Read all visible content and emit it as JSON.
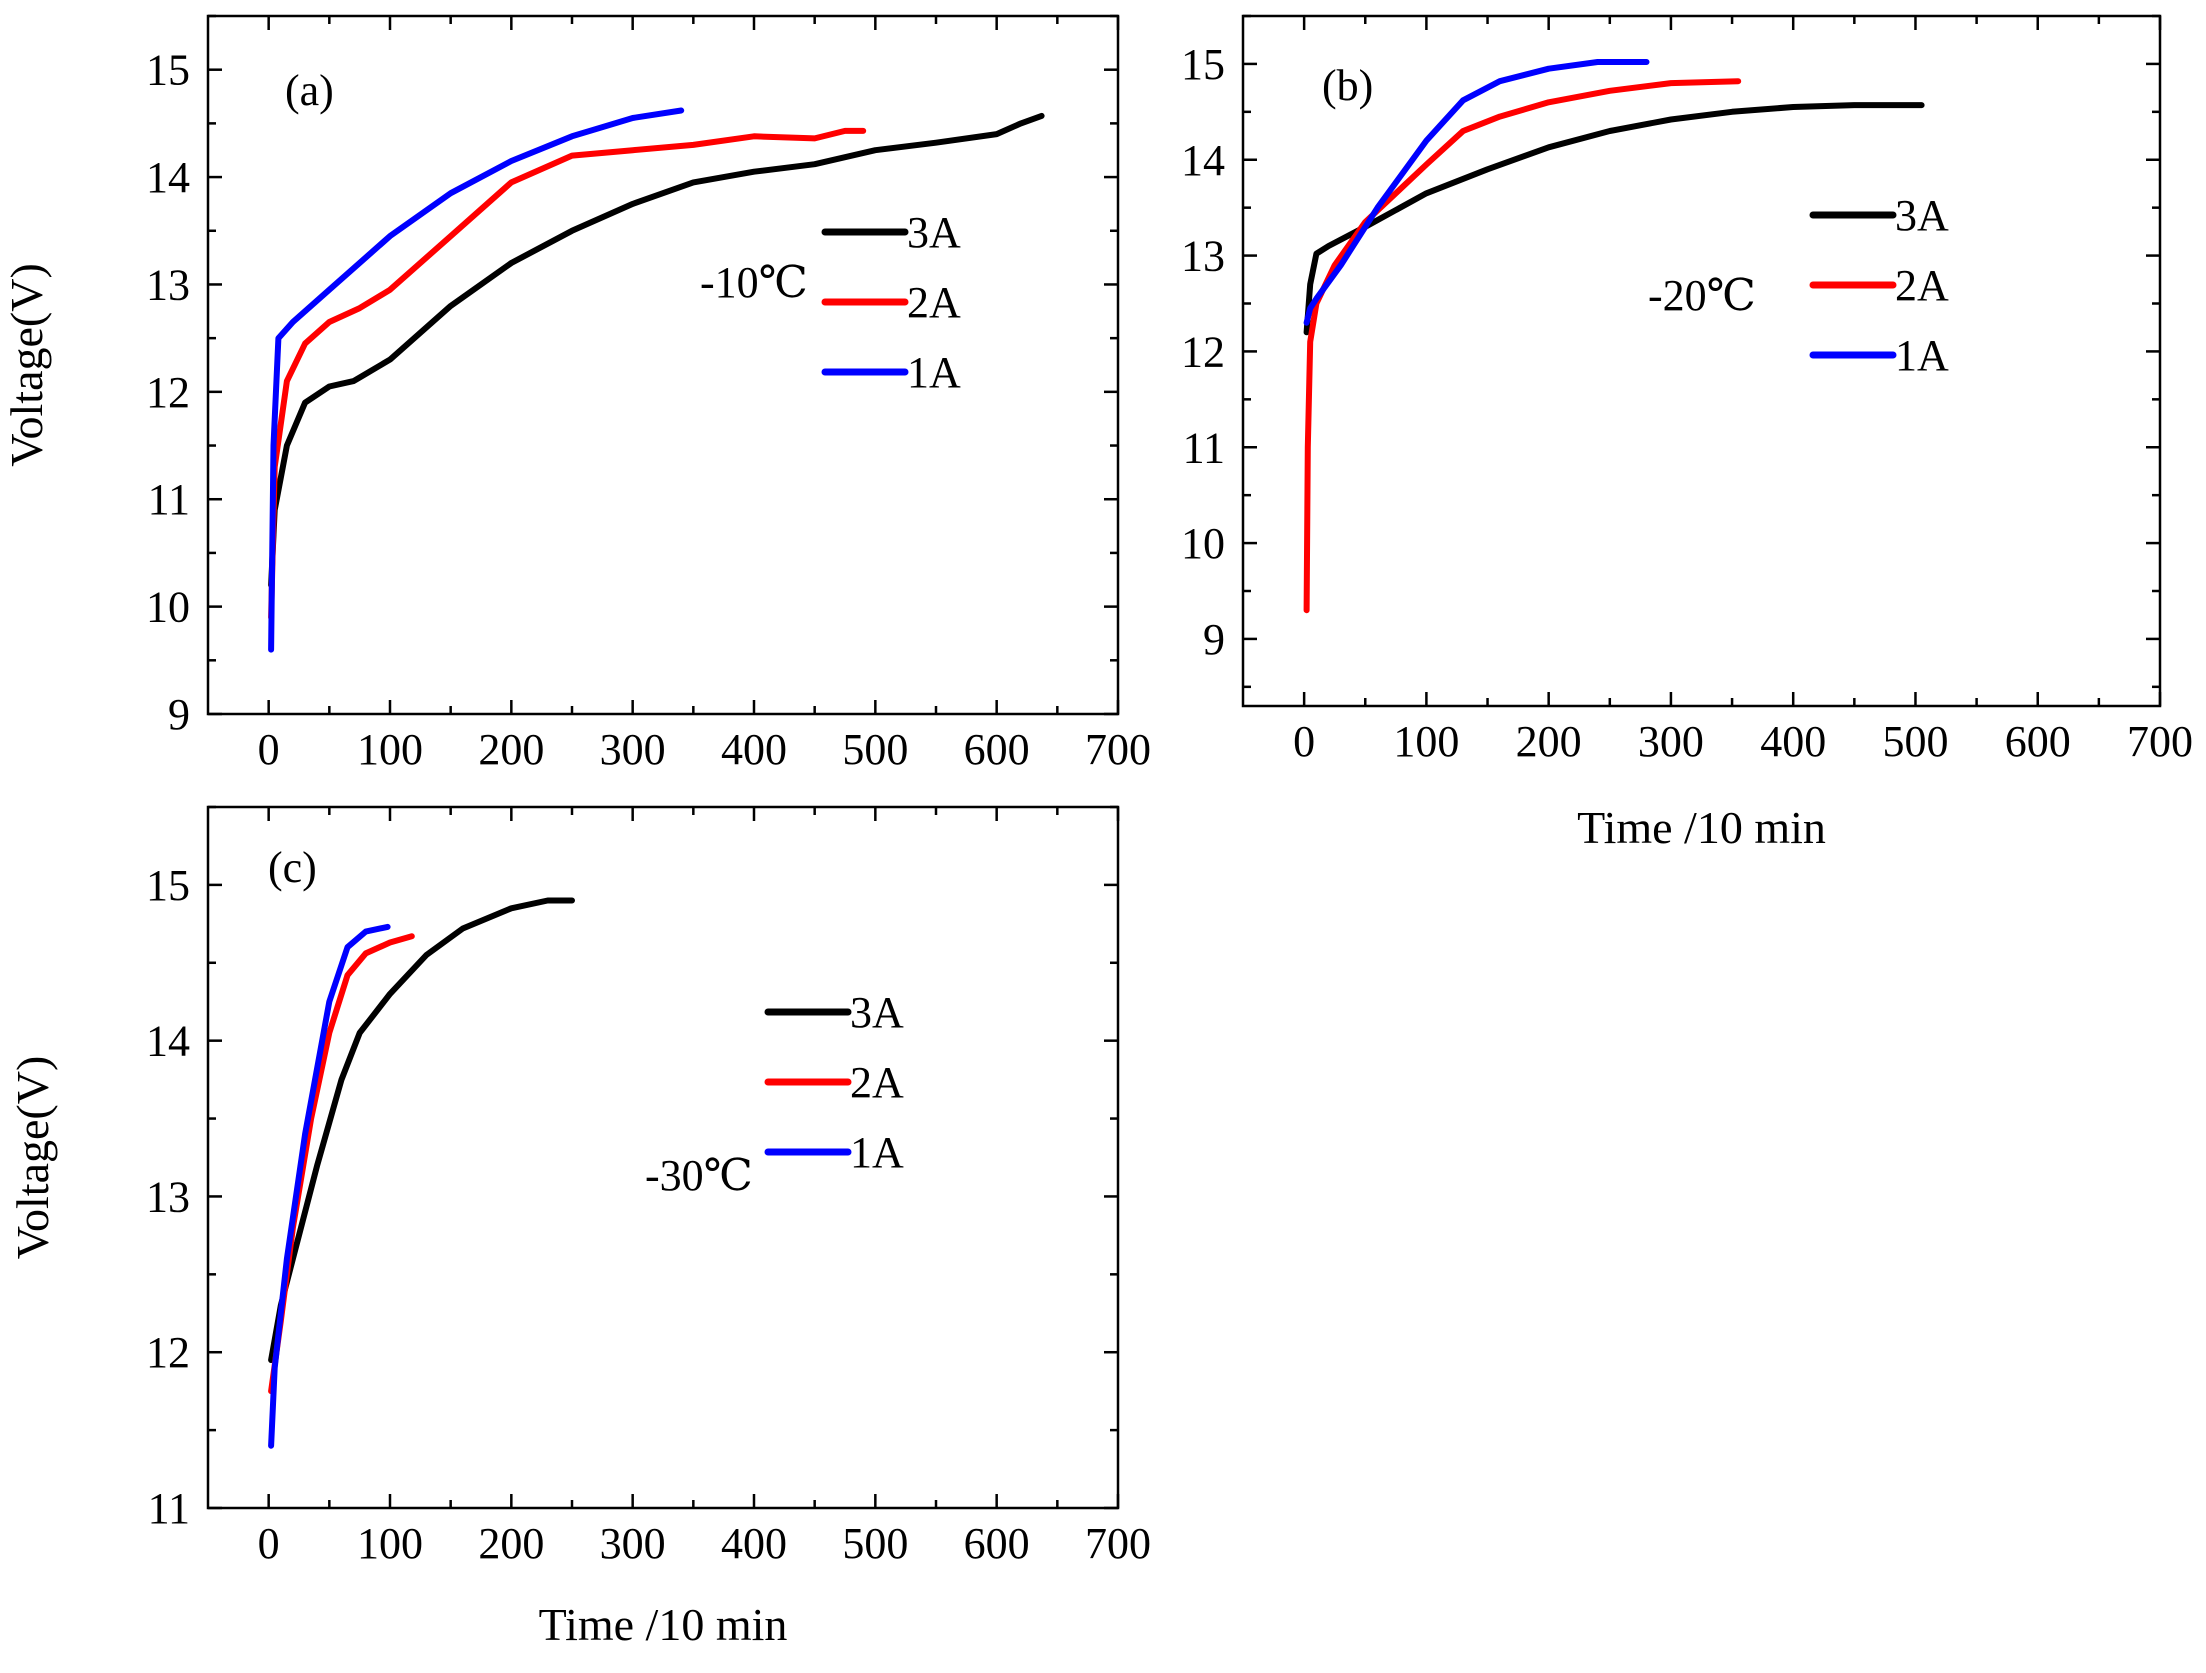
{
  "colors": {
    "3A": "#000000",
    "2A": "#ff0000",
    "1A": "#0000ff"
  },
  "chart_data": [
    {
      "type": "line",
      "panel": "(a)",
      "annotation": "-10℃",
      "xlabel": "",
      "ylabel": "Voltage(V)",
      "xlim": [
        -50,
        700
      ],
      "ylim": [
        9,
        15.5
      ],
      "xticks": [
        "0",
        "100",
        "200",
        "300",
        "400",
        "500",
        "600",
        "700"
      ],
      "yticks": [
        "9",
        "10",
        "11",
        "12",
        "13",
        "14",
        "15"
      ],
      "legend_position": "right",
      "series": [
        {
          "name": "3A",
          "color": "#000000",
          "x": [
            2,
            5,
            15,
            30,
            50,
            70,
            100,
            150,
            200,
            250,
            300,
            350,
            400,
            450,
            500,
            550,
            600,
            620,
            637
          ],
          "y": [
            10.2,
            10.9,
            11.5,
            11.9,
            12.05,
            12.1,
            12.3,
            12.8,
            13.2,
            13.5,
            13.75,
            13.95,
            14.05,
            14.12,
            14.25,
            14.32,
            14.4,
            14.5,
            14.57
          ]
        },
        {
          "name": "2A",
          "color": "#ff0000",
          "x": [
            2,
            5,
            15,
            30,
            50,
            75,
            100,
            150,
            200,
            250,
            300,
            350,
            400,
            450,
            475,
            490
          ],
          "y": [
            9.9,
            11.3,
            12.1,
            12.45,
            12.65,
            12.78,
            12.95,
            13.45,
            13.95,
            14.2,
            14.25,
            14.3,
            14.38,
            14.36,
            14.43,
            14.43
          ]
        },
        {
          "name": "1A",
          "color": "#0000ff",
          "x": [
            2,
            4,
            8,
            20,
            50,
            100,
            150,
            200,
            250,
            300,
            340
          ],
          "y": [
            9.6,
            11.5,
            12.5,
            12.65,
            12.95,
            13.45,
            13.85,
            14.15,
            14.38,
            14.55,
            14.62
          ]
        }
      ]
    },
    {
      "type": "line",
      "panel": "(b)",
      "annotation": "-20℃",
      "xlabel": "Time /10 min",
      "ylabel": "",
      "xlim": [
        -50,
        700
      ],
      "ylim": [
        8.3,
        15.5
      ],
      "xticks": [
        "0",
        "100",
        "200",
        "300",
        "400",
        "500",
        "600",
        "700"
      ],
      "yticks": [
        "9",
        "10",
        "11",
        "12",
        "13",
        "14",
        "15"
      ],
      "legend_position": "right",
      "series": [
        {
          "name": "3A",
          "color": "#000000",
          "x": [
            2,
            5,
            10,
            20,
            50,
            100,
            150,
            200,
            250,
            300,
            350,
            400,
            450,
            505
          ],
          "y": [
            12.2,
            12.7,
            13.02,
            13.1,
            13.3,
            13.65,
            13.9,
            14.13,
            14.3,
            14.42,
            14.5,
            14.55,
            14.57,
            14.57
          ]
        },
        {
          "name": "2A",
          "color": "#ff0000",
          "x": [
            2,
            3,
            5,
            10,
            25,
            50,
            75,
            100,
            130,
            160,
            200,
            250,
            300,
            355
          ],
          "y": [
            9.3,
            11.0,
            12.1,
            12.5,
            12.9,
            13.35,
            13.65,
            13.95,
            14.3,
            14.45,
            14.6,
            14.72,
            14.8,
            14.82
          ]
        },
        {
          "name": "1A",
          "color": "#0000ff",
          "x": [
            2,
            5,
            10,
            30,
            60,
            100,
            130,
            160,
            200,
            240,
            280
          ],
          "y": [
            12.3,
            12.45,
            12.55,
            12.9,
            13.5,
            14.2,
            14.62,
            14.82,
            14.95,
            15.02,
            15.02
          ]
        }
      ]
    },
    {
      "type": "line",
      "panel": "(c)",
      "annotation": "-30℃",
      "xlabel": "Time /10 min",
      "ylabel": "Voltage(V)",
      "xlim": [
        -50,
        700
      ],
      "ylim": [
        11,
        15.5
      ],
      "xticks": [
        "0",
        "100",
        "200",
        "300",
        "400",
        "500",
        "600",
        "700"
      ],
      "yticks": [
        "11",
        "12",
        "13",
        "14",
        "15"
      ],
      "legend_position": "right",
      "series": [
        {
          "name": "3A",
          "color": "#000000",
          "x": [
            2,
            10,
            20,
            40,
            60,
            75,
            100,
            130,
            160,
            200,
            230,
            250
          ],
          "y": [
            11.95,
            12.3,
            12.6,
            13.2,
            13.75,
            14.05,
            14.3,
            14.55,
            14.72,
            14.85,
            14.9,
            14.9
          ]
        },
        {
          "name": "2A",
          "color": "#ff0000",
          "x": [
            2,
            10,
            20,
            35,
            50,
            65,
            80,
            100,
            118
          ],
          "y": [
            11.75,
            12.2,
            12.8,
            13.5,
            14.05,
            14.42,
            14.56,
            14.63,
            14.67
          ]
        },
        {
          "name": "1A",
          "color": "#0000ff",
          "x": [
            2,
            5,
            15,
            30,
            50,
            65,
            80,
            98
          ],
          "y": [
            11.4,
            11.9,
            12.6,
            13.4,
            14.25,
            14.6,
            14.7,
            14.73
          ]
        }
      ]
    }
  ]
}
